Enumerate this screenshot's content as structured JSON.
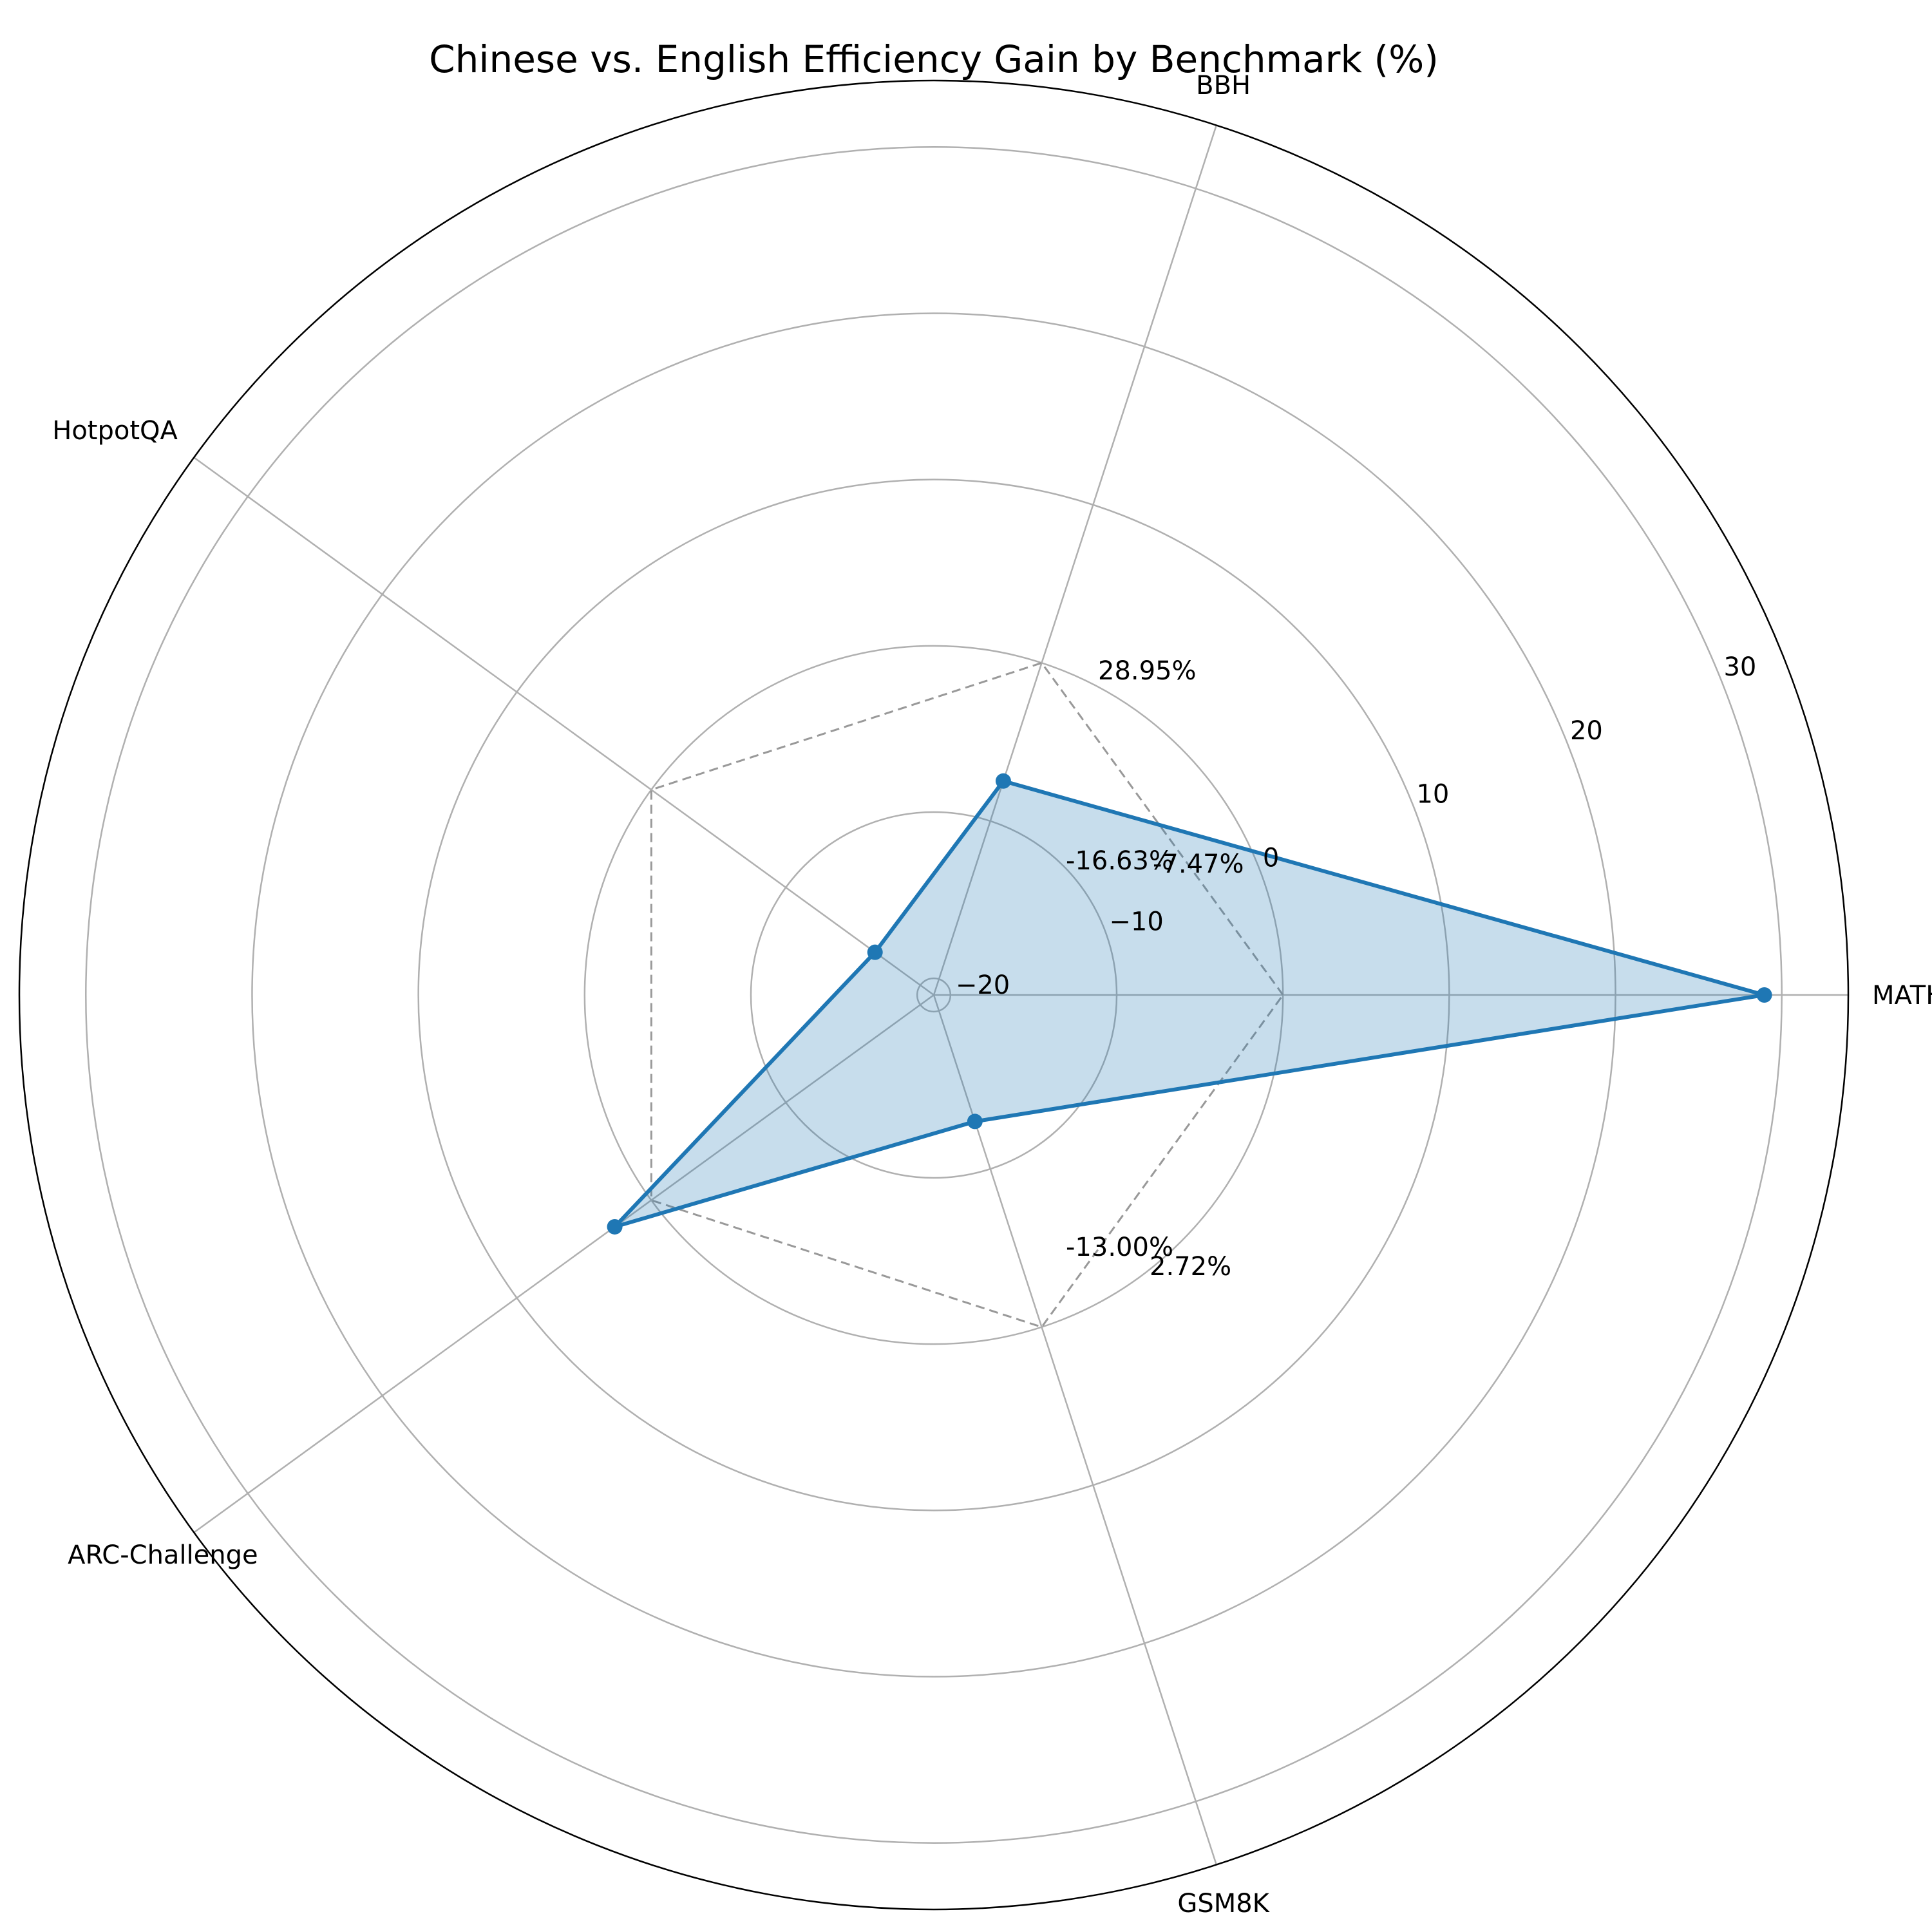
{
  "chart_data": {
    "type": "radar",
    "title": "Chinese vs. English Efficiency Gain by Benchmark (%)",
    "categories": [
      "MATH",
      "BBH",
      "HotpotQA",
      "ARC-Challenge",
      "GSM8K"
    ],
    "series": [
      {
        "values": [
          28.95,
          -7.47,
          -16.63,
          2.72,
          -13.0
        ],
        "color": "#1f77b4"
      }
    ],
    "value_labels": [
      "28.95%",
      "-7.47%",
      "-16.63%",
      "2.72%",
      "-13.00%"
    ],
    "reference_value": 0,
    "rlim": [
      -21,
      34
    ],
    "rticks": [
      -20,
      -10,
      0,
      10,
      20,
      30
    ],
    "rtick_labels": [
      "−20",
      "−10",
      "0",
      "10",
      "20",
      "30"
    ],
    "grid": true,
    "fill_alpha": 0.25,
    "colors": {
      "series": "#1f77b4",
      "grid": "#b0b0b0",
      "reference": "#999999"
    }
  }
}
